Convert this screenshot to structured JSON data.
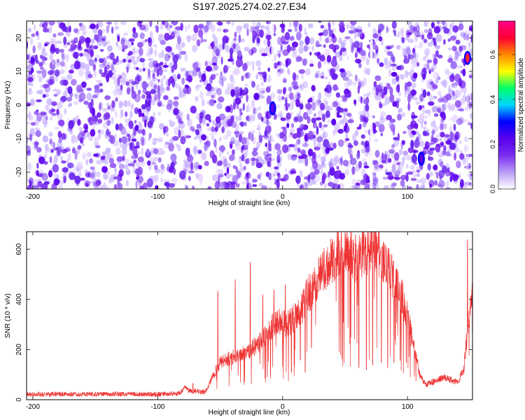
{
  "title": "S197.2025.274.02.27.E34",
  "chart_data": [
    {
      "type": "heatmap",
      "xlabel": "Height of straight line (km)",
      "ylabel": "Frequency (Hz)",
      "xlim": [
        -205,
        152
      ],
      "ylim": [
        -25,
        25
      ],
      "xticks": [
        -200,
        -100,
        0,
        100
      ],
      "yticks": [
        -20,
        -10,
        0,
        10,
        20
      ],
      "grid": false,
      "colorbar": {
        "label": "Normalized spectral amplitude",
        "range": [
          0.0,
          0.75
        ],
        "ticks": [
          0.0,
          0.2,
          0.4,
          0.6
        ],
        "colormap": [
          "#ffffff",
          "#b99cf7",
          "#7a2ef0",
          "#5a00ee",
          "#0000ff",
          "#00d7ff",
          "#00ff66",
          "#ffff00",
          "#ff8800",
          "#ff0033",
          "#ff0088"
        ]
      },
      "hotspots": [
        {
          "x": -8,
          "y": -1,
          "value": 0.25
        },
        {
          "x": 148,
          "y": 14,
          "value": 0.72
        },
        {
          "x": 111,
          "y": -16,
          "value": 0.2
        }
      ],
      "stripes_x": [
        -8,
        71,
        -26,
        148
      ]
    },
    {
      "type": "line",
      "xlabel": "Height of straight line (km)",
      "ylabel": "SNR (10 * v/v)",
      "xlim": [
        -205,
        152
      ],
      "ylim": [
        0,
        670
      ],
      "xticks": [
        -200,
        -100,
        0,
        100
      ],
      "yticks": [
        0,
        200,
        400,
        600
      ],
      "grid": false,
      "series": [
        {
          "color": "#ee3333",
          "envelope": {
            "x": [
              -205,
              -150,
              -100,
              -82,
              -78,
              -75,
              -62,
              -57,
              -50,
              -40,
              -30,
              -20,
              -12,
              -5,
              0,
              5,
              10,
              15,
              20,
              25,
              30,
              35,
              40,
              45,
              50,
              55,
              60,
              65,
              70,
              75,
              80,
              85,
              90,
              95,
              100,
              105,
              110,
              115,
              120,
              125,
              130,
              135,
              140,
              145,
              148,
              152
            ],
            "y": [
              22,
              22,
              22,
              25,
              55,
              35,
              30,
              80,
              150,
              170,
              190,
              220,
              260,
              320,
              300,
              310,
              330,
              360,
              420,
              450,
              490,
              530,
              560,
              580,
              590,
              585,
              560,
              600,
              610,
              600,
              560,
              520,
              470,
              420,
              330,
              220,
              90,
              60,
              70,
              80,
              90,
              80,
              70,
              120,
              280,
              430
            ]
          },
          "spikes": [
            {
              "x": -72,
              "y": 65
            },
            {
              "x": -52,
              "y": 435
            },
            {
              "x": -38,
              "y": 480
            },
            {
              "x": -26,
              "y": 550
            },
            {
              "x": -16,
              "y": 420
            },
            {
              "x": -7,
              "y": 440
            },
            {
              "x": 2,
              "y": 460
            },
            {
              "x": 47,
              "y": 660
            },
            {
              "x": 66,
              "y": 660
            },
            {
              "x": 75,
              "y": 665
            },
            {
              "x": 82,
              "y": 620
            },
            {
              "x": 148,
              "y": 640
            }
          ],
          "dips": [
            {
              "x": 61,
              "y": 130
            },
            {
              "x": 67,
              "y": 120
            },
            {
              "x": 72,
              "y": 140
            },
            {
              "x": 79,
              "y": 150
            },
            {
              "x": 84,
              "y": 130
            },
            {
              "x": 89,
              "y": 150
            },
            {
              "x": 94,
              "y": 160
            },
            {
              "x": 99,
              "y": 150
            },
            {
              "x": 14,
              "y": 160
            },
            {
              "x": 18,
              "y": 110
            },
            {
              "x": 23,
              "y": 210
            },
            {
              "x": 7,
              "y": 110
            }
          ]
        }
      ]
    }
  ]
}
